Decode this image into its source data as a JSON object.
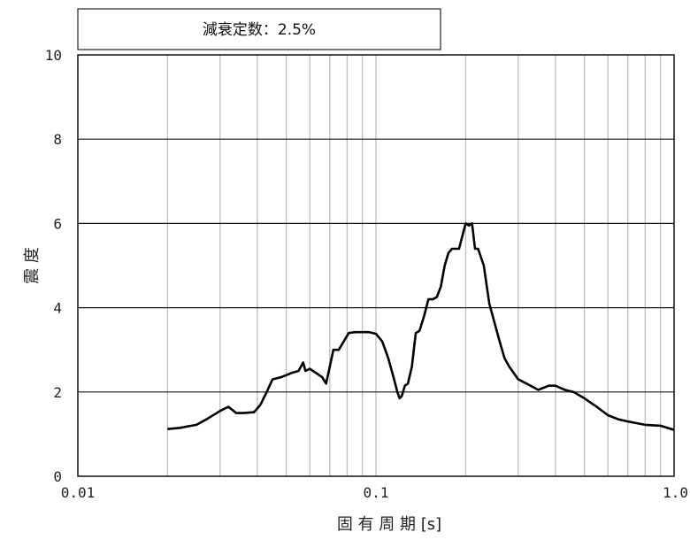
{
  "chart_data": {
    "type": "line",
    "title": "減衰定数：2.5%",
    "xlabel": "固 有 周 期 [s]",
    "ylabel": "震 度",
    "x_scale": "log",
    "xlim": [
      0.01,
      1.0
    ],
    "ylim": [
      0,
      10
    ],
    "x_tick_labels": [
      "0.01",
      "0.1",
      "1.0"
    ],
    "y_tick_labels": [
      "0",
      "2",
      "4",
      "6",
      "8",
      "10"
    ],
    "grid": {
      "x": "log-minor",
      "y": "major"
    },
    "series": [
      {
        "x": [
          0.02,
          0.022,
          0.025,
          0.027,
          0.03,
          0.032,
          0.034,
          0.036,
          0.039,
          0.041,
          0.043,
          0.045,
          0.048,
          0.05,
          0.052,
          0.055,
          0.057,
          0.058,
          0.06,
          0.063,
          0.066,
          0.068,
          0.07,
          0.072,
          0.075,
          0.078,
          0.081,
          0.085,
          0.09,
          0.095,
          0.1,
          0.105,
          0.11,
          0.115,
          0.118,
          0.12,
          0.122,
          0.125,
          0.128,
          0.132,
          0.136,
          0.14,
          0.145,
          0.15,
          0.155,
          0.16,
          0.165,
          0.17,
          0.175,
          0.18,
          0.185,
          0.19,
          0.2,
          0.205,
          0.21,
          0.215,
          0.22,
          0.23,
          0.24,
          0.26,
          0.27,
          0.28,
          0.3,
          0.32,
          0.35,
          0.38,
          0.4,
          0.43,
          0.46,
          0.5,
          0.55,
          0.6,
          0.65,
          0.7,
          0.8,
          0.9,
          1.0
        ],
        "y": [
          1.12,
          1.15,
          1.22,
          1.35,
          1.55,
          1.65,
          1.5,
          1.5,
          1.52,
          1.7,
          2.0,
          2.3,
          2.35,
          2.4,
          2.45,
          2.5,
          2.7,
          2.5,
          2.55,
          2.45,
          2.35,
          2.2,
          2.6,
          3.0,
          3.0,
          3.2,
          3.4,
          3.42,
          3.42,
          3.42,
          3.38,
          3.2,
          2.8,
          2.3,
          2.0,
          1.85,
          1.9,
          2.15,
          2.2,
          2.6,
          3.4,
          3.45,
          3.8,
          4.2,
          4.2,
          4.25,
          4.5,
          5.0,
          5.3,
          5.4,
          5.4,
          5.4,
          6.0,
          5.95,
          6.0,
          5.4,
          5.4,
          5.0,
          4.1,
          3.2,
          2.8,
          2.6,
          2.3,
          2.2,
          2.05,
          2.15,
          2.15,
          2.05,
          2.0,
          1.85,
          1.65,
          1.45,
          1.35,
          1.3,
          1.22,
          1.2,
          1.1
        ]
      }
    ]
  }
}
